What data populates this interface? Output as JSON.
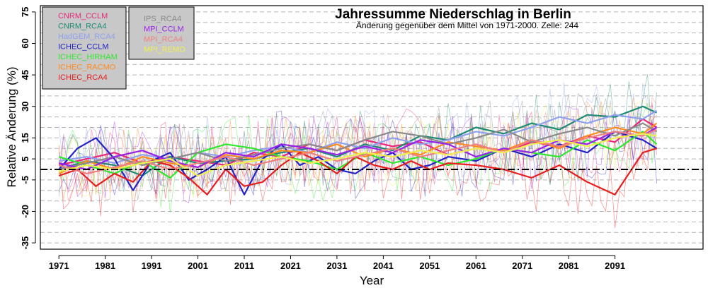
{
  "chart_data": {
    "type": "line",
    "title": "Jahressumme Niederschlag in Berlin",
    "subtitle": "Änderung gegenüber dem Mittel von 1971-2000. Zelle: 244",
    "xlabel": "Year",
    "ylabel": "Relative Änderung (%)",
    "xlim": [
      1967,
      2110
    ],
    "ylim": [
      -38,
      78
    ],
    "x_ticks": [
      1971,
      1981,
      1991,
      2001,
      2011,
      2021,
      2031,
      2041,
      2051,
      2061,
      2071,
      2081,
      2091
    ],
    "y_ticks": [
      -35,
      -20,
      -5,
      5,
      15,
      30,
      45,
      60,
      75
    ],
    "reference_line": 0,
    "grid": "horizontal dashed",
    "legend_placement": "top-left",
    "series": [
      {
        "name": "CNRM_CCLM",
        "color": "#e8287a",
        "years": [
          1971,
          1977,
          1983,
          1989,
          1995,
          2001,
          2007,
          2013,
          2019,
          2025,
          2031,
          2037,
          2043,
          2049,
          2055,
          2061,
          2067,
          2073,
          2079,
          2085,
          2091,
          2097,
          2100
        ],
        "values": [
          2,
          5,
          8,
          3,
          6,
          4,
          2,
          8,
          6,
          12,
          9,
          14,
          11,
          13,
          7,
          10,
          8,
          13,
          11,
          16,
          13,
          24,
          20
        ]
      },
      {
        "name": "CNRM_RCA4",
        "color": "#1e8a74",
        "years": [
          1971,
          1977,
          1983,
          1989,
          1995,
          2001,
          2007,
          2013,
          2019,
          2025,
          2031,
          2037,
          2043,
          2049,
          2055,
          2061,
          2067,
          2073,
          2079,
          2085,
          2091,
          2097,
          2100
        ],
        "values": [
          0,
          4,
          2,
          -3,
          6,
          3,
          4,
          5,
          8,
          10,
          6,
          12,
          9,
          16,
          14,
          20,
          17,
          22,
          19,
          26,
          25,
          30,
          27
        ]
      },
      {
        "name": "HadGEM_RCA4",
        "color": "#8fa0f0",
        "years": [
          1971,
          1977,
          1983,
          1989,
          1995,
          2001,
          2007,
          2013,
          2019,
          2025,
          2031,
          2037,
          2043,
          2049,
          2055,
          2061,
          2067,
          2073,
          2079,
          2085,
          2091,
          2097,
          2100
        ],
        "values": [
          4,
          6,
          3,
          7,
          5,
          8,
          6,
          9,
          11,
          8,
          13,
          10,
          15,
          12,
          14,
          18,
          16,
          20,
          25,
          22,
          26,
          24,
          28
        ]
      },
      {
        "name": "ICHEC_CCLM",
        "color": "#2222c8",
        "years": [
          1971,
          1975,
          1979,
          1983,
          1987,
          1991,
          1995,
          1999,
          2003,
          2007,
          2011,
          2015,
          2019,
          2023,
          2027,
          2031,
          2035,
          2039,
          2043,
          2047,
          2051,
          2055,
          2061,
          2067,
          2073,
          2079,
          2085,
          2091,
          2097,
          2100
        ],
        "values": [
          0,
          10,
          15,
          5,
          -10,
          4,
          8,
          -5,
          0,
          6,
          -12,
          5,
          12,
          2,
          6,
          0,
          -2,
          4,
          8,
          0,
          2,
          6,
          4,
          10,
          6,
          12,
          8,
          18,
          14,
          10
        ]
      },
      {
        "name": "ICHEC_HIRHAM",
        "color": "#2ee82e",
        "years": [
          1971,
          1977,
          1983,
          1989,
          1995,
          2001,
          2007,
          2013,
          2019,
          2025,
          2031,
          2037,
          2043,
          2049,
          2055,
          2061,
          2067,
          2073,
          2079,
          2085,
          2091,
          2097,
          2100
        ],
        "values": [
          6,
          2,
          -2,
          4,
          -4,
          8,
          12,
          10,
          6,
          4,
          0,
          8,
          3,
          6,
          2,
          5,
          10,
          8,
          6,
          14,
          9,
          18,
          12
        ]
      },
      {
        "name": "ICHEC_RACMO",
        "color": "#ff8a1e",
        "years": [
          1971,
          1977,
          1983,
          1989,
          1995,
          2001,
          2007,
          2013,
          2019,
          2025,
          2031,
          2037,
          2043,
          2049,
          2055,
          2061,
          2067,
          2073,
          2079,
          2085,
          2091,
          2097,
          2100
        ],
        "values": [
          -2,
          4,
          0,
          6,
          3,
          1,
          7,
          5,
          9,
          8,
          12,
          6,
          10,
          7,
          13,
          11,
          9,
          14,
          10,
          16,
          20,
          17,
          22
        ]
      },
      {
        "name": "ICHEC_RCA4",
        "color": "#e81e1e",
        "years": [
          1971,
          1975,
          1979,
          1983,
          1987,
          1991,
          1995,
          1999,
          2003,
          2007,
          2011,
          2015,
          2019,
          2023,
          2027,
          2031,
          2035,
          2039,
          2043,
          2047,
          2051,
          2055,
          2061,
          2067,
          2073,
          2079,
          2085,
          2091,
          2097,
          2100
        ],
        "values": [
          -3,
          0,
          -8,
          -2,
          -6,
          4,
          2,
          -4,
          -12,
          0,
          -8,
          -6,
          2,
          8,
          4,
          -2,
          6,
          2,
          0,
          4,
          0,
          3,
          2,
          0,
          -4,
          2,
          -6,
          -12,
          8,
          10
        ]
      },
      {
        "name": "IPS_RCA4",
        "color": "#8a8a8a",
        "years": [
          1971,
          1977,
          1983,
          1989,
          1995,
          2001,
          2007,
          2013,
          2019,
          2025,
          2031,
          2037,
          2043,
          2049,
          2055,
          2061,
          2067,
          2073,
          2079,
          2085,
          2091,
          2097,
          2100
        ],
        "values": [
          0,
          3,
          6,
          2,
          5,
          8,
          4,
          7,
          10,
          12,
          9,
          14,
          18,
          16,
          12,
          15,
          19,
          13,
          17,
          20,
          16,
          22,
          18
        ]
      },
      {
        "name": "MPI_CCLM",
        "color": "#9a22e8",
        "years": [
          1971,
          1977,
          1983,
          1989,
          1995,
          2001,
          2007,
          2013,
          2019,
          2025,
          2031,
          2037,
          2043,
          2049,
          2055,
          2061,
          2067,
          2073,
          2079,
          2085,
          2091,
          2097,
          2100
        ],
        "values": [
          3,
          0,
          6,
          9,
          4,
          1,
          8,
          6,
          12,
          10,
          7,
          11,
          8,
          14,
          12,
          6,
          10,
          8,
          14,
          12,
          18,
          16,
          20
        ]
      },
      {
        "name": "MPI_RCA4",
        "color": "#f08080",
        "years": [
          1971,
          1977,
          1983,
          1989,
          1995,
          2001,
          2007,
          2013,
          2019,
          2025,
          2031,
          2037,
          2043,
          2049,
          2055,
          2061,
          2067,
          2073,
          2079,
          2085,
          2091,
          2097,
          2100
        ],
        "values": [
          2,
          -2,
          1,
          4,
          0,
          3,
          6,
          2,
          5,
          8,
          4,
          7,
          10,
          6,
          9,
          12,
          8,
          14,
          11,
          15,
          18,
          16,
          19
        ]
      },
      {
        "name": "MPI_REMO",
        "color": "#f0f050",
        "years": [
          1971,
          1977,
          1983,
          1989,
          1995,
          2001,
          2007,
          2013,
          2019,
          2025,
          2031,
          2037,
          2043,
          2049,
          2055,
          2061,
          2067,
          2073,
          2079,
          2085,
          2091,
          2097,
          2100
        ],
        "values": [
          -1,
          2,
          0,
          3,
          5,
          -3,
          2,
          4,
          6,
          3,
          5,
          8,
          6,
          9,
          7,
          10,
          8,
          12,
          14,
          11,
          15,
          17,
          16
        ]
      }
    ]
  }
}
